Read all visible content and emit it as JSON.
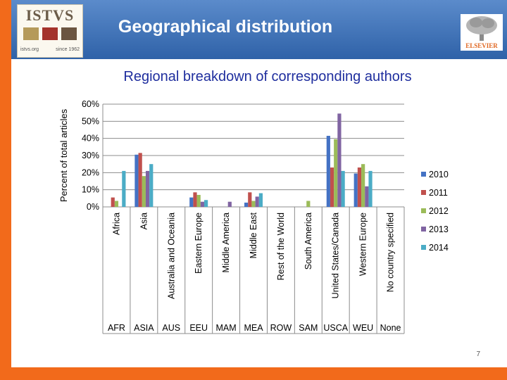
{
  "header": {
    "title": "Geographical distribution",
    "logo_name": "ISTVS",
    "logo_url": "istvs.org",
    "logo_since": "since 1962",
    "publisher": "ELSEVIER"
  },
  "page_number": "7",
  "colors": {
    "header_top": "#5b8bcb",
    "header_bottom": "#2f62a8",
    "accent_orange": "#f26a1b",
    "subtitle_blue": "#1f2e9e"
  },
  "chart_data": {
    "type": "bar",
    "title": "Regional breakdown of corresponding authors",
    "ylabel": "Percent of total articles",
    "xlabel": "",
    "ylim": [
      0,
      60
    ],
    "yticks": [
      0,
      10,
      20,
      30,
      40,
      50,
      60
    ],
    "ytick_labels": [
      "0%",
      "10%",
      "20%",
      "30%",
      "40%",
      "50%",
      "60%"
    ],
    "grid": true,
    "legend_position": "right",
    "categories": [
      "Africa",
      "Asia",
      "Australia and Oceania",
      "Eastern Europe",
      "Middle America",
      "Middle East",
      "Rest of the World",
      "South America",
      "United States/Canada",
      "Western Europe",
      "No country specified"
    ],
    "category_codes": [
      "AFR",
      "ASIA",
      "AUS",
      "EEU",
      "MAM",
      "MEA",
      "ROW",
      "SAM",
      "USCA",
      "WEU",
      "None"
    ],
    "series": [
      {
        "name": "2010",
        "color": "#4472c4",
        "values": [
          0,
          30.5,
          0,
          5.5,
          0,
          2.5,
          0,
          0,
          41.5,
          19.5,
          0
        ]
      },
      {
        "name": "2011",
        "color": "#c0504d",
        "values": [
          5.5,
          31.5,
          0,
          8.5,
          0,
          8.5,
          0,
          0,
          23,
          23,
          0
        ]
      },
      {
        "name": "2012",
        "color": "#9bbb59",
        "values": [
          3.5,
          18,
          0,
          7,
          0,
          3.5,
          0,
          3.5,
          39.5,
          25,
          0
        ]
      },
      {
        "name": "2013",
        "color": "#8064a2",
        "values": [
          0,
          21,
          0,
          3,
          3,
          6,
          0,
          0,
          54.5,
          12,
          0
        ]
      },
      {
        "name": "2014",
        "color": "#4bacc6",
        "values": [
          21,
          25,
          0,
          4,
          0,
          8,
          0,
          0,
          21,
          21,
          0
        ]
      }
    ]
  }
}
